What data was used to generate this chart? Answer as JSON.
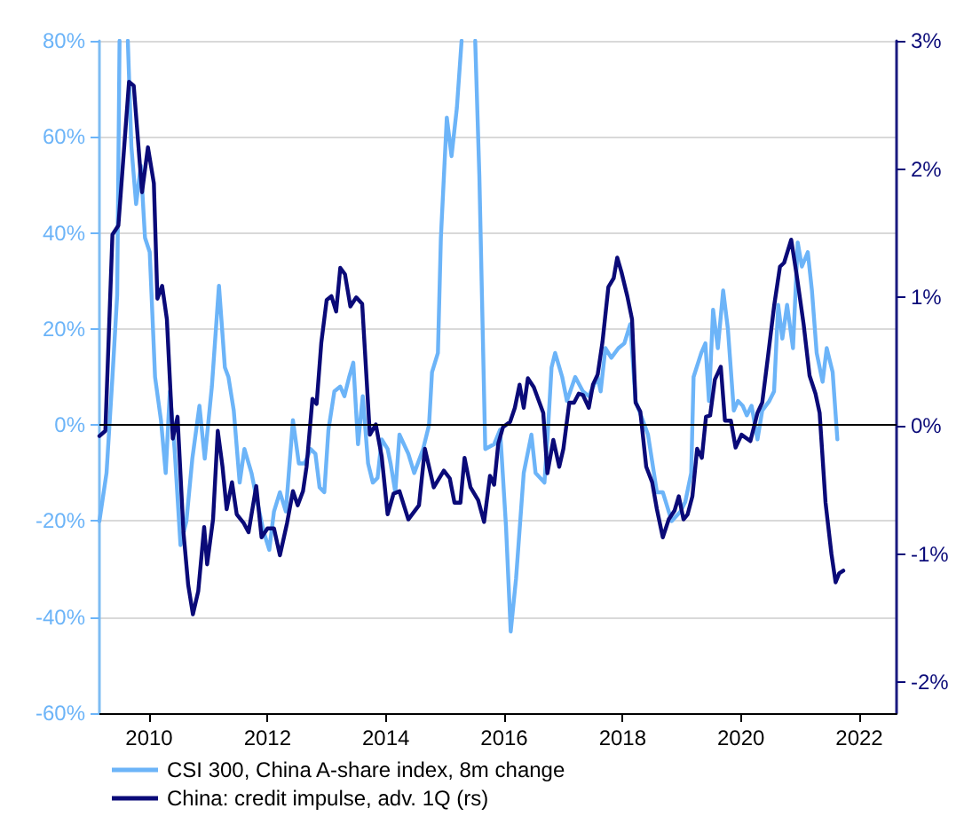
{
  "chart_data": {
    "type": "line",
    "xlim": [
      2009.16,
      2022.63
    ],
    "xticks": [
      2010,
      2012,
      2014,
      2016,
      2018,
      2020,
      2022
    ],
    "ylim": [
      -60,
      80
    ],
    "yticks": [
      {
        "value": -60,
        "label": "-60%"
      },
      {
        "value": -40,
        "label": "-40%"
      },
      {
        "value": -20,
        "label": "-20%"
      },
      {
        "value": 0,
        "label": "0%"
      },
      {
        "value": 20,
        "label": "20%"
      },
      {
        "value": 40,
        "label": "40%"
      },
      {
        "value": 60,
        "label": "60%"
      },
      {
        "value": 80,
        "label": "80%"
      }
    ],
    "y2lim": [
      -2.24,
      3
    ],
    "y2ticks": [
      {
        "value": -2,
        "label": "-2%"
      },
      {
        "value": -1,
        "label": "-1%"
      },
      {
        "value": 0,
        "label": "0%"
      },
      {
        "value": 1,
        "label": "1%"
      },
      {
        "value": 2,
        "label": "2%"
      },
      {
        "value": 3,
        "label": "3%"
      }
    ],
    "grid": "y",
    "legend": "bottom",
    "marker": "none",
    "line_style": "solid",
    "ref_lines": [
      {
        "axis": "y",
        "value": 0,
        "color": "#000000"
      }
    ],
    "series": [
      {
        "name": "CSI 300, China A-share index, 8m change",
        "color": "#6cb4f8",
        "axis": "y",
        "x": [
          2009.16,
          2009.28,
          2009.38,
          2009.46,
          2009.5,
          2009.6,
          2009.64,
          2009.7,
          2009.78,
          2009.86,
          2009.93,
          2010.01,
          2010.1,
          2010.2,
          2010.28,
          2010.35,
          2010.43,
          2010.53,
          2010.63,
          2010.73,
          2010.85,
          2010.94,
          2011.06,
          2011.18,
          2011.28,
          2011.34,
          2011.43,
          2011.53,
          2011.61,
          2011.73,
          2011.81,
          2011.93,
          2012.03,
          2012.11,
          2012.21,
          2012.31,
          2012.43,
          2012.53,
          2012.63,
          2012.73,
          2012.81,
          2012.88,
          2012.96,
          2013.03,
          2013.13,
          2013.23,
          2013.3,
          2013.38,
          2013.45,
          2013.53,
          2013.61,
          2013.7,
          2013.78,
          2013.86,
          2013.93,
          2014.03,
          2014.08,
          2014.16,
          2014.23,
          2014.38,
          2014.48,
          2014.63,
          2014.73,
          2014.78,
          2014.88,
          2014.93,
          2015.03,
          2015.11,
          2015.2,
          2015.28,
          2015.4,
          2015.51,
          2015.58,
          2015.68,
          2015.83,
          2015.93,
          2016.03,
          2016.11,
          2016.2,
          2016.33,
          2016.46,
          2016.53,
          2016.68,
          2016.73,
          2016.8,
          2016.86,
          2016.98,
          2017.06,
          2017.2,
          2017.33,
          2017.43,
          2017.58,
          2017.63,
          2017.71,
          2017.81,
          2017.93,
          2018.03,
          2018.13,
          2018.22,
          2018.43,
          2018.58,
          2018.68,
          2018.83,
          2018.98,
          2019.06,
          2019.16,
          2019.2,
          2019.33,
          2019.4,
          2019.46,
          2019.53,
          2019.61,
          2019.7,
          2019.78,
          2019.88,
          2019.95,
          2020.03,
          2020.1,
          2020.18,
          2020.28,
          2020.36,
          2020.48,
          2020.56,
          2020.63,
          2020.7,
          2020.78,
          2020.88,
          2020.96,
          2021.03,
          2021.13,
          2021.2,
          2021.28,
          2021.38,
          2021.45,
          2021.55,
          2021.63
        ],
        "values": [
          -20,
          -10,
          10,
          27,
          80,
          null,
          80,
          58,
          46,
          54,
          39,
          36,
          10,
          1,
          -10,
          7,
          -5,
          -25,
          -20,
          -7,
          4,
          -7,
          8,
          29,
          12,
          10,
          3,
          -12,
          -5,
          -10,
          -15,
          -22,
          -26,
          -18,
          -14,
          -18,
          1,
          -8,
          -8,
          -5,
          -6,
          -13,
          -14,
          -1,
          7,
          8,
          6,
          10,
          13,
          -4,
          6,
          -8,
          -12,
          -11,
          -3,
          -5,
          -8,
          -14,
          -2,
          -6,
          -10,
          -5,
          0,
          11,
          15,
          39,
          64,
          56,
          66,
          80,
          null,
          80,
          52,
          -5,
          -4,
          -1,
          -21,
          -43,
          -32,
          -10,
          -2,
          -10,
          -12,
          -3,
          12,
          15,
          10,
          5,
          10,
          7,
          6,
          10,
          7,
          16,
          14,
          16,
          17,
          21,
          5,
          -2,
          -14,
          -14,
          -20,
          -18,
          -16,
          -10,
          10,
          15,
          17,
          5,
          24,
          16,
          28,
          20,
          3,
          5,
          4,
          2,
          4,
          -3,
          3,
          5,
          7,
          25,
          18,
          25,
          16,
          38,
          33,
          36,
          28,
          15,
          9,
          16,
          11,
          -3
        ]
      },
      {
        "name": "China: credit impulse, adv. 1Q (rs)",
        "color": "#0a0a78",
        "axis": "y2",
        "x": [
          2009.16,
          2009.26,
          2009.38,
          2009.48,
          2009.66,
          2009.74,
          2009.88,
          2009.98,
          2010.08,
          2010.14,
          2010.22,
          2010.3,
          2010.4,
          2010.48,
          2010.58,
          2010.66,
          2010.74,
          2010.83,
          2010.93,
          2010.98,
          2011.08,
          2011.16,
          2011.24,
          2011.31,
          2011.4,
          2011.48,
          2011.6,
          2011.68,
          2011.81,
          2011.9,
          2012.0,
          2012.11,
          2012.21,
          2012.33,
          2012.43,
          2012.51,
          2012.6,
          2012.66,
          2012.76,
          2012.83,
          2012.91,
          2013.0,
          2013.08,
          2013.16,
          2013.23,
          2013.31,
          2013.4,
          2013.5,
          2013.6,
          2013.73,
          2013.83,
          2013.93,
          2014.03,
          2014.13,
          2014.23,
          2014.38,
          2014.56,
          2014.66,
          2014.81,
          2014.98,
          2015.08,
          2015.16,
          2015.26,
          2015.33,
          2015.43,
          2015.56,
          2015.66,
          2015.76,
          2015.83,
          2015.9,
          2015.98,
          2016.1,
          2016.18,
          2016.26,
          2016.33,
          2016.4,
          2016.5,
          2016.66,
          2016.73,
          2016.83,
          2016.93,
          2017.0,
          2017.1,
          2017.18,
          2017.26,
          2017.33,
          2017.43,
          2017.5,
          2017.58,
          2017.66,
          2017.76,
          2017.85,
          2017.91,
          2017.98,
          2018.08,
          2018.16,
          2018.22,
          2018.3,
          2018.4,
          2018.5,
          2018.58,
          2018.68,
          2018.78,
          2018.88,
          2018.95,
          2019.03,
          2019.1,
          2019.18,
          2019.26,
          2019.34,
          2019.41,
          2019.48,
          2019.56,
          2019.66,
          2019.73,
          2019.83,
          2019.91,
          2020.01,
          2020.16,
          2020.28,
          2020.36,
          2020.46,
          2020.56,
          2020.66,
          2020.73,
          2020.85,
          2020.95,
          2021.06,
          2021.16,
          2021.26,
          2021.33,
          2021.43,
          2021.53,
          2021.6,
          2021.66,
          2021.73
        ],
        "values": [
          -0.08,
          -0.04,
          1.49,
          1.56,
          2.68,
          2.65,
          1.82,
          2.17,
          1.89,
          0.99,
          1.09,
          0.83,
          -0.1,
          0.07,
          -0.83,
          -1.24,
          -1.47,
          -1.29,
          -0.79,
          -1.08,
          -0.73,
          -0.04,
          -0.32,
          -0.65,
          -0.44,
          -0.69,
          -0.76,
          -0.83,
          -0.47,
          -0.87,
          -0.8,
          -0.8,
          -1.01,
          -0.76,
          -0.51,
          -0.62,
          -0.51,
          -0.32,
          0.21,
          0.17,
          0.65,
          0.98,
          1.01,
          0.89,
          1.23,
          1.18,
          0.93,
          1.0,
          0.95,
          -0.07,
          0.01,
          -0.24,
          -0.69,
          -0.53,
          -0.51,
          -0.73,
          -0.62,
          -0.18,
          -0.48,
          -0.35,
          -0.41,
          -0.6,
          -0.6,
          -0.25,
          -0.48,
          -0.58,
          -0.75,
          -0.39,
          -0.46,
          -0.14,
          -0.01,
          0.03,
          0.14,
          0.32,
          0.14,
          0.37,
          0.3,
          0.1,
          -0.37,
          -0.11,
          -0.32,
          -0.18,
          0.18,
          0.18,
          0.25,
          0.24,
          0.14,
          0.32,
          0.4,
          0.65,
          1.08,
          1.15,
          1.31,
          1.2,
          1.01,
          0.83,
          0.18,
          0.11,
          -0.32,
          -0.44,
          -0.65,
          -0.87,
          -0.73,
          -0.66,
          -0.55,
          -0.73,
          -0.69,
          -0.55,
          -0.18,
          -0.25,
          0.07,
          0.08,
          0.36,
          0.46,
          0.04,
          0.04,
          -0.17,
          -0.07,
          -0.12,
          0.1,
          0.18,
          0.55,
          0.93,
          1.24,
          1.27,
          1.45,
          1.15,
          0.79,
          0.39,
          0.25,
          0.1,
          -0.6,
          -1.0,
          -1.22,
          -1.15,
          -1.13
        ]
      }
    ]
  }
}
